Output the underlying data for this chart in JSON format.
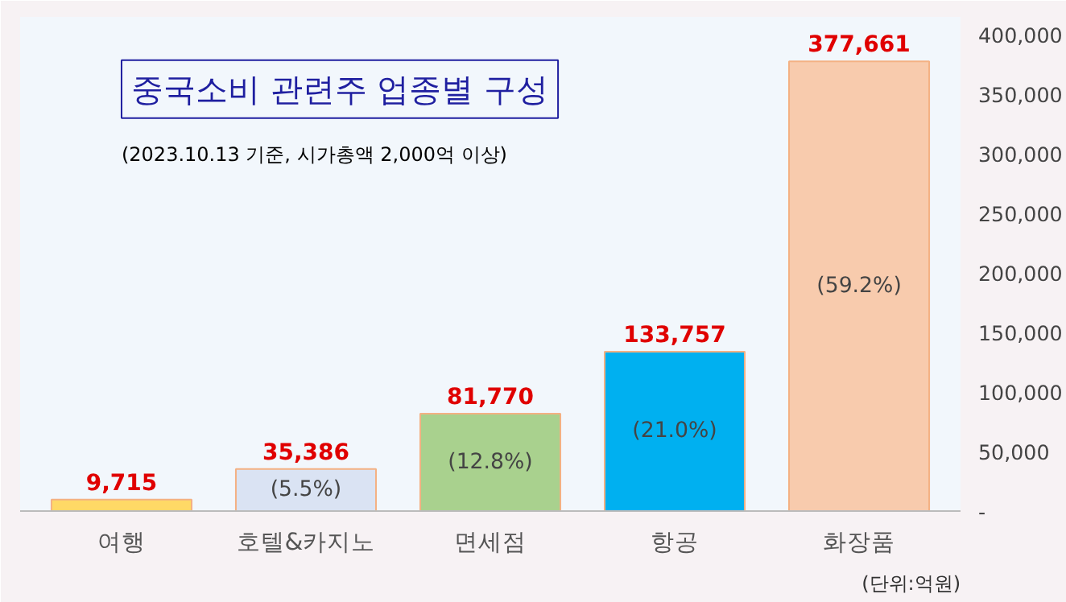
{
  "chart_data": {
    "type": "bar",
    "title": "중국소비 관련주 업종별 구성",
    "subtitle": "(2023.10.13 기준, 시가총액 2,000억 이상)",
    "categories": [
      "여행",
      "호텔&카지노",
      "면세점",
      "항공",
      "화장품"
    ],
    "values": [
      9715,
      35386,
      81770,
      133757,
      377661
    ],
    "colors": [
      "#ffd966",
      "#dae3f3",
      "#a9d18e",
      "#00b0f0",
      "#f8cbad"
    ],
    "value_labels": [
      "9,715",
      "35,386",
      "81,770",
      "133,757",
      "377,661"
    ],
    "ylim": [
      0,
      415000
    ],
    "yticks": [
      {
        "value": 0,
        "label": "-"
      },
      {
        "value": 50000,
        "label": "50,000"
      },
      {
        "value": 100000,
        "label": "100,000"
      },
      {
        "value": 150000,
        "label": "150,000"
      },
      {
        "value": 200000,
        "label": "200,000"
      },
      {
        "value": 250000,
        "label": "250,000"
      },
      {
        "value": 300000,
        "label": "300,000"
      },
      {
        "value": 350000,
        "label": "350,000"
      },
      {
        "value": 400000,
        "label": "400,000"
      }
    ],
    "annotations": [
      "(5.5%)",
      "(12.8%)",
      "(21.0%)",
      "(59.2%)",
      "(단위:억원)"
    ],
    "grid": false
  }
}
